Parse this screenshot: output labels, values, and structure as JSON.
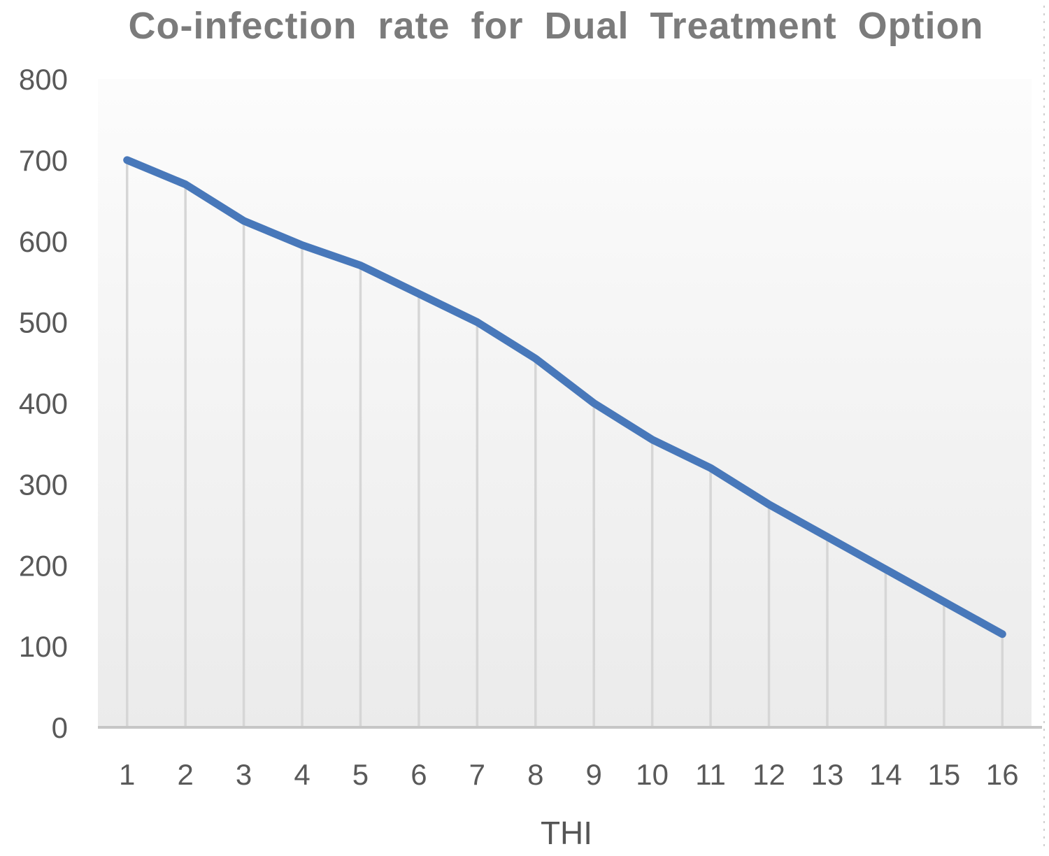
{
  "chart_data": {
    "type": "line",
    "title": "Co-infection rate for Dual Treatment Option",
    "xlabel": "THI",
    "ylabel": "",
    "series_name": "Co-infection rate",
    "x": [
      1,
      2,
      3,
      4,
      5,
      6,
      7,
      8,
      9,
      10,
      11,
      12,
      13,
      14,
      15,
      16
    ],
    "values": [
      700,
      670,
      625,
      595,
      570,
      535,
      500,
      455,
      400,
      355,
      320,
      275,
      235,
      195,
      155,
      115
    ],
    "ylim": [
      0,
      800
    ],
    "yticks": [
      0,
      100,
      200,
      300,
      400,
      500,
      600,
      700,
      800
    ],
    "grid": "vertical-drop-lines-below-series-only",
    "legend": "none",
    "colors": {
      "line": "#4878BA",
      "title_text": "#7B7B7B",
      "axis_text": "#595959",
      "drop_line": "#D6D6D6",
      "axis_line": "#C6C6C6",
      "plot_bg_top": "#FCFCFC",
      "plot_bg_bottom": "#EBEBEB",
      "chart_border": "#CFCFCF"
    }
  }
}
